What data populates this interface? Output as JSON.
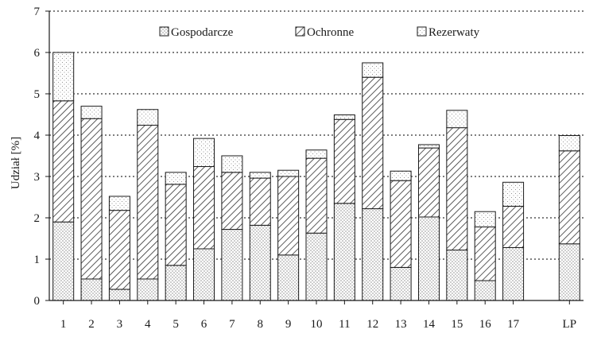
{
  "chart_data": {
    "type": "bar",
    "stacked": true,
    "title": "",
    "xlabel": "",
    "ylabel": "Udział [%]",
    "ylim": [
      0,
      7
    ],
    "yticks": [
      0,
      1,
      2,
      3,
      4,
      5,
      6,
      7
    ],
    "grid": "horizontal dotted",
    "legend_position": "top",
    "categories": [
      "1",
      "2",
      "3",
      "4",
      "5",
      "6",
      "7",
      "8",
      "9",
      "10",
      "11",
      "12",
      "13",
      "14",
      "15",
      "16",
      "17",
      "LP"
    ],
    "gap_before": "LP",
    "series": [
      {
        "name": "Gospodarcze",
        "pattern": "dots",
        "values": [
          1.9,
          0.52,
          0.27,
          0.52,
          0.85,
          1.25,
          1.72,
          1.82,
          1.1,
          1.63,
          2.35,
          2.22,
          0.8,
          2.02,
          1.22,
          0.48,
          1.28,
          1.37
        ]
      },
      {
        "name": "Ochronne",
        "pattern": "hatch",
        "values": [
          2.93,
          3.88,
          1.91,
          3.72,
          1.96,
          1.99,
          1.38,
          1.14,
          1.9,
          1.81,
          2.03,
          3.18,
          2.1,
          1.67,
          2.96,
          1.3,
          1.0,
          2.25
        ]
      },
      {
        "name": "Rezerwaty",
        "pattern": "sparse-dots",
        "values": [
          1.17,
          0.3,
          0.34,
          0.38,
          0.29,
          0.68,
          0.4,
          0.14,
          0.15,
          0.2,
          0.11,
          0.35,
          0.23,
          0.08,
          0.42,
          0.37,
          0.58,
          0.37
        ]
      }
    ],
    "colors": {
      "stroke": "#1a1a1a",
      "grid": "#333333",
      "dots": "#555555",
      "hatch": "#333333",
      "sparse_dots": "#777777"
    }
  }
}
